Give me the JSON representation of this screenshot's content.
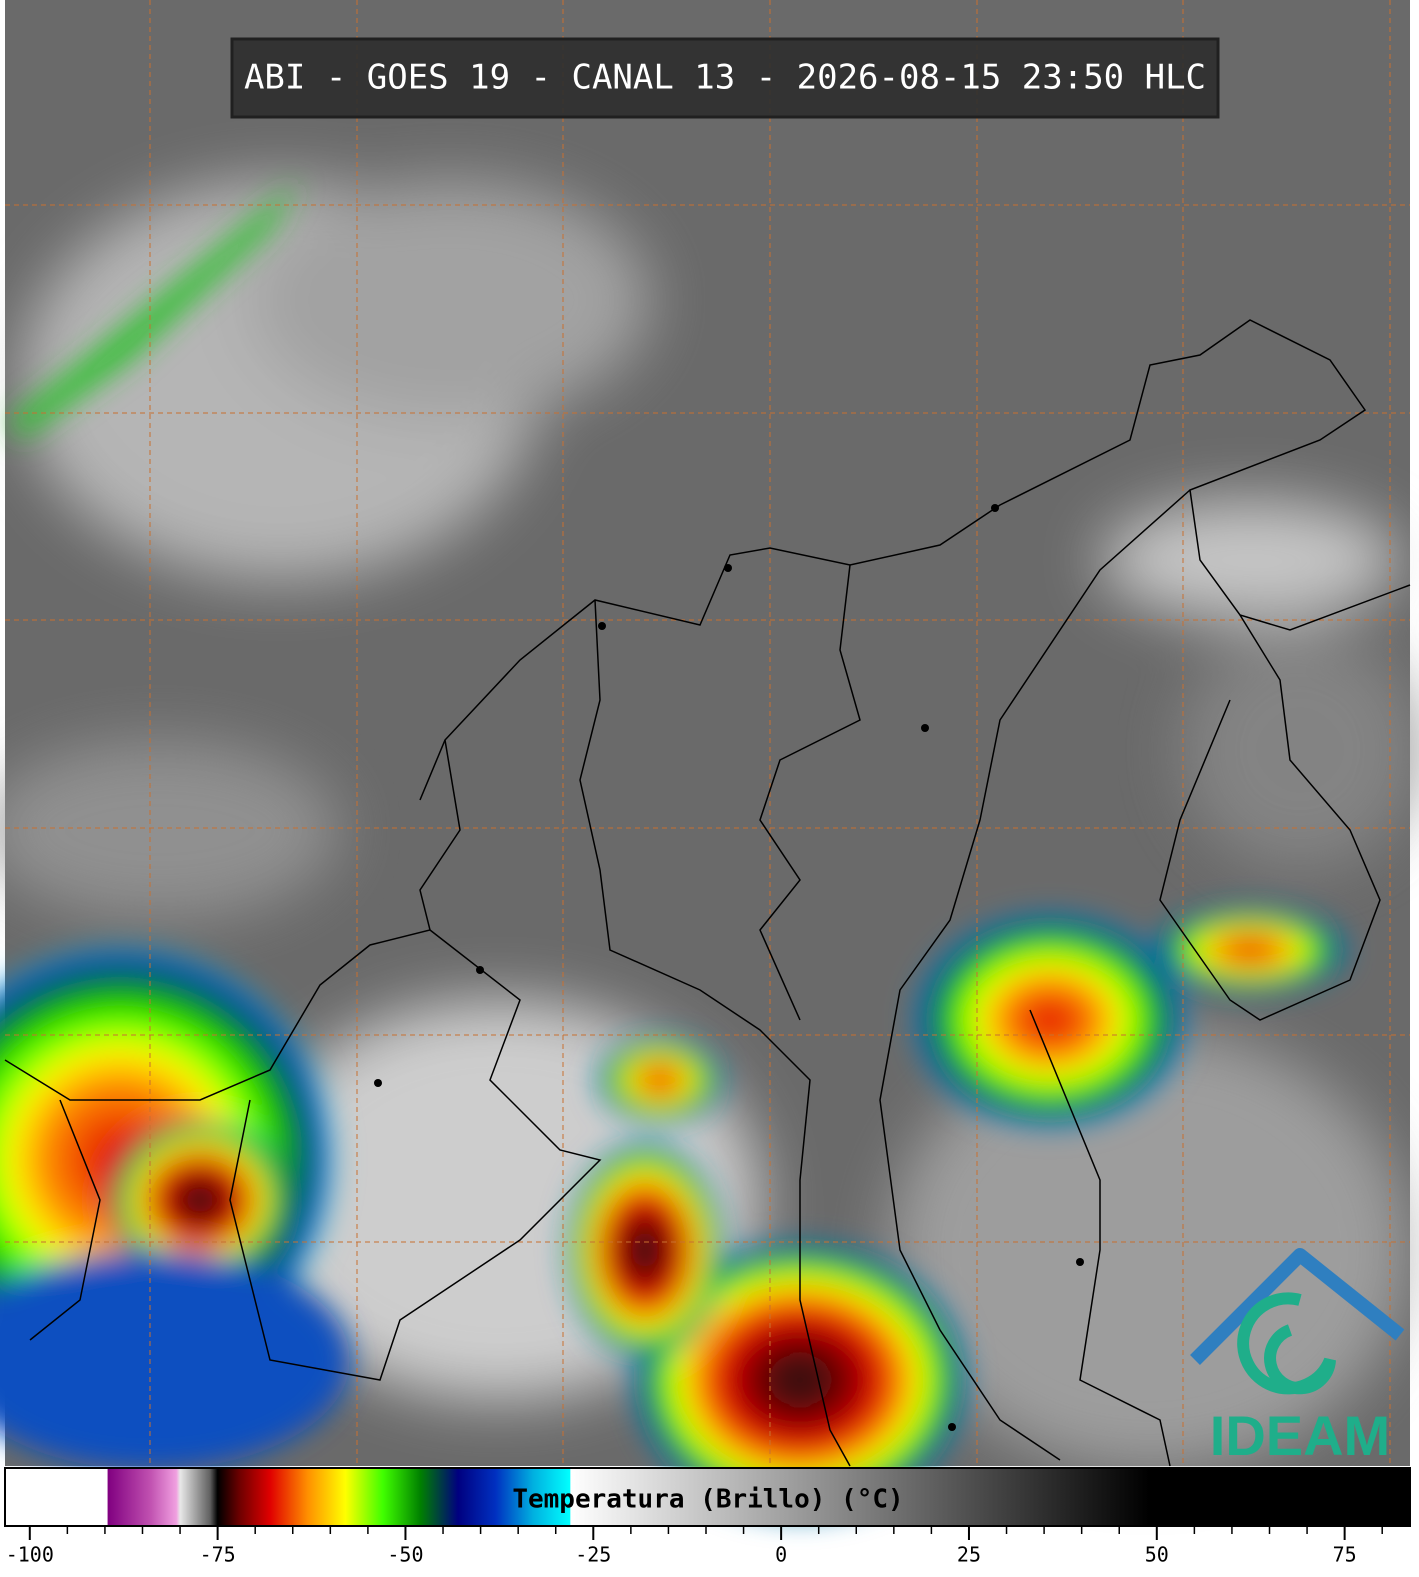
{
  "title": "ABI - GOES 19 - CANAL 13 - 2026-08-15 23:50 HLC",
  "logo": {
    "text": "IDEAM"
  },
  "colorbar": {
    "label": "Temperatura (Brillo) (°C)",
    "xlim": [
      -103.3,
      83.7
    ],
    "xticks": [
      -100,
      -75,
      -50,
      -25,
      0,
      25,
      50,
      75
    ],
    "minor_ticks": [
      -95,
      -90,
      -85,
      -80,
      -70,
      -65,
      -60,
      -55,
      -45,
      -40,
      -35,
      -30,
      -20,
      -15,
      -10,
      -5,
      5,
      10,
      15,
      20,
      30,
      35,
      40,
      45,
      55,
      60,
      65,
      70,
      80
    ],
    "colorscale": [
      {
        "value": -103.3,
        "color": "#ffffff"
      },
      {
        "value": -89.7,
        "color": "#ffffff"
      },
      {
        "value": -89.6,
        "color": "#800080"
      },
      {
        "value": -84,
        "color": "#c050b0"
      },
      {
        "value": -80.5,
        "color": "#f0a0e0"
      },
      {
        "value": -80,
        "color": "#e8e8e8"
      },
      {
        "value": -76,
        "color": "#606060"
      },
      {
        "value": -75,
        "color": "#000000"
      },
      {
        "value": -72,
        "color": "#700000"
      },
      {
        "value": -68,
        "color": "#e00000"
      },
      {
        "value": -63,
        "color": "#ff9000"
      },
      {
        "value": -58,
        "color": "#ffff00"
      },
      {
        "value": -53,
        "color": "#40ff00"
      },
      {
        "value": -48,
        "color": "#008000"
      },
      {
        "value": -43,
        "color": "#000080"
      },
      {
        "value": -38,
        "color": "#0030c0"
      },
      {
        "value": -33,
        "color": "#00b0e0"
      },
      {
        "value": -28.1,
        "color": "#00ffff"
      },
      {
        "value": -28,
        "color": "#ffffff"
      },
      {
        "value": 49,
        "color": "#000000"
      },
      {
        "value": 83.7,
        "color": "#000000"
      }
    ]
  }
}
